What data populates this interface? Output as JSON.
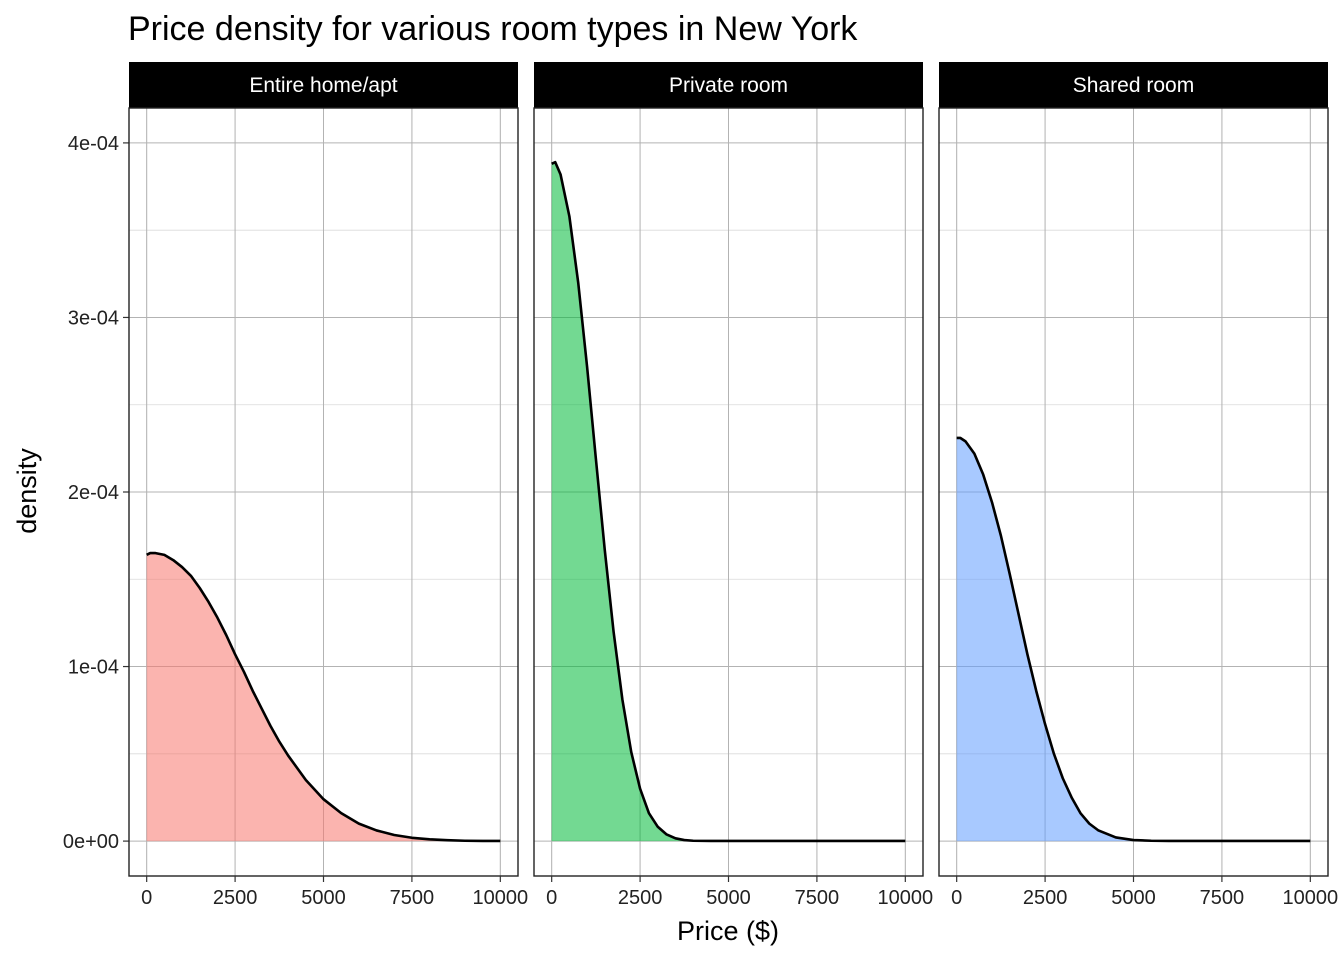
{
  "chart_data": {
    "type": "area",
    "title": "Price density for various room types in New York",
    "xlabel": "Price ($)",
    "ylabel": "density",
    "xlim": [
      -500,
      10500
    ],
    "ylim": [
      -2e-05,
      0.00042
    ],
    "x_ticks": [
      0,
      2500,
      5000,
      7500,
      10000
    ],
    "x_tick_labels": [
      "0",
      "2500",
      "5000",
      "7500",
      "10000"
    ],
    "y_ticks": [
      0,
      0.0001,
      0.0002,
      0.0003,
      0.0004
    ],
    "y_tick_labels": [
      "0e+00",
      "1e-04",
      "2e-04",
      "3e-04",
      "4e-04"
    ],
    "grid": true,
    "legend": "none",
    "x": [
      0,
      100,
      250,
      500,
      750,
      1000,
      1250,
      1500,
      1750,
      2000,
      2250,
      2500,
      2750,
      3000,
      3250,
      3500,
      3750,
      4000,
      4500,
      5000,
      5500,
      6000,
      6500,
      7000,
      7500,
      8000,
      8500,
      9000,
      9500,
      10000
    ],
    "panels": [
      {
        "name": "Entire home/apt",
        "color": "#f8766d",
        "values": [
          0.000164,
          0.000165,
          0.000165,
          0.000164,
          0.000161,
          0.000157,
          0.000152,
          0.000145,
          0.000137,
          0.000128,
          0.000118,
          0.000107,
          9.7e-05,
          8.6e-05,
          7.6e-05,
          6.6e-05,
          5.7e-05,
          4.9e-05,
          3.5e-05,
          2.4e-05,
          1.6e-05,
          1e-05,
          6.1e-06,
          3.5e-06,
          1.9e-06,
          1e-06,
          5e-07,
          2e-07,
          1e-07,
          1e-07
        ]
      },
      {
        "name": "Private room",
        "color": "#00ba38",
        "values": [
          0.000388,
          0.000389,
          0.000382,
          0.000358,
          0.00032,
          0.000272,
          0.000219,
          0.000167,
          0.00012,
          8.1e-05,
          5.1e-05,
          3e-05,
          1.6e-05,
          8.2e-06,
          3.8e-06,
          1.6e-06,
          6e-07,
          2e-07,
          1e-07,
          1e-07,
          1e-07,
          1e-07,
          1e-07,
          1e-07,
          1e-07,
          1e-07,
          1e-07,
          1e-07,
          1e-07,
          1e-07
        ]
      },
      {
        "name": "Shared room",
        "color": "#619cff",
        "values": [
          0.000231,
          0.000231,
          0.000229,
          0.000222,
          0.00021,
          0.000194,
          0.000175,
          0.000153,
          0.00013,
          0.000107,
          8.6e-05,
          6.7e-05,
          5e-05,
          3.6e-05,
          2.5e-05,
          1.6e-05,
          1e-05,
          6.2e-06,
          2.1e-06,
          6e-07,
          2e-07,
          1e-07,
          1e-07,
          1e-07,
          1e-07,
          1e-07,
          1e-07,
          1e-07,
          1e-07,
          1e-07
        ]
      }
    ]
  }
}
